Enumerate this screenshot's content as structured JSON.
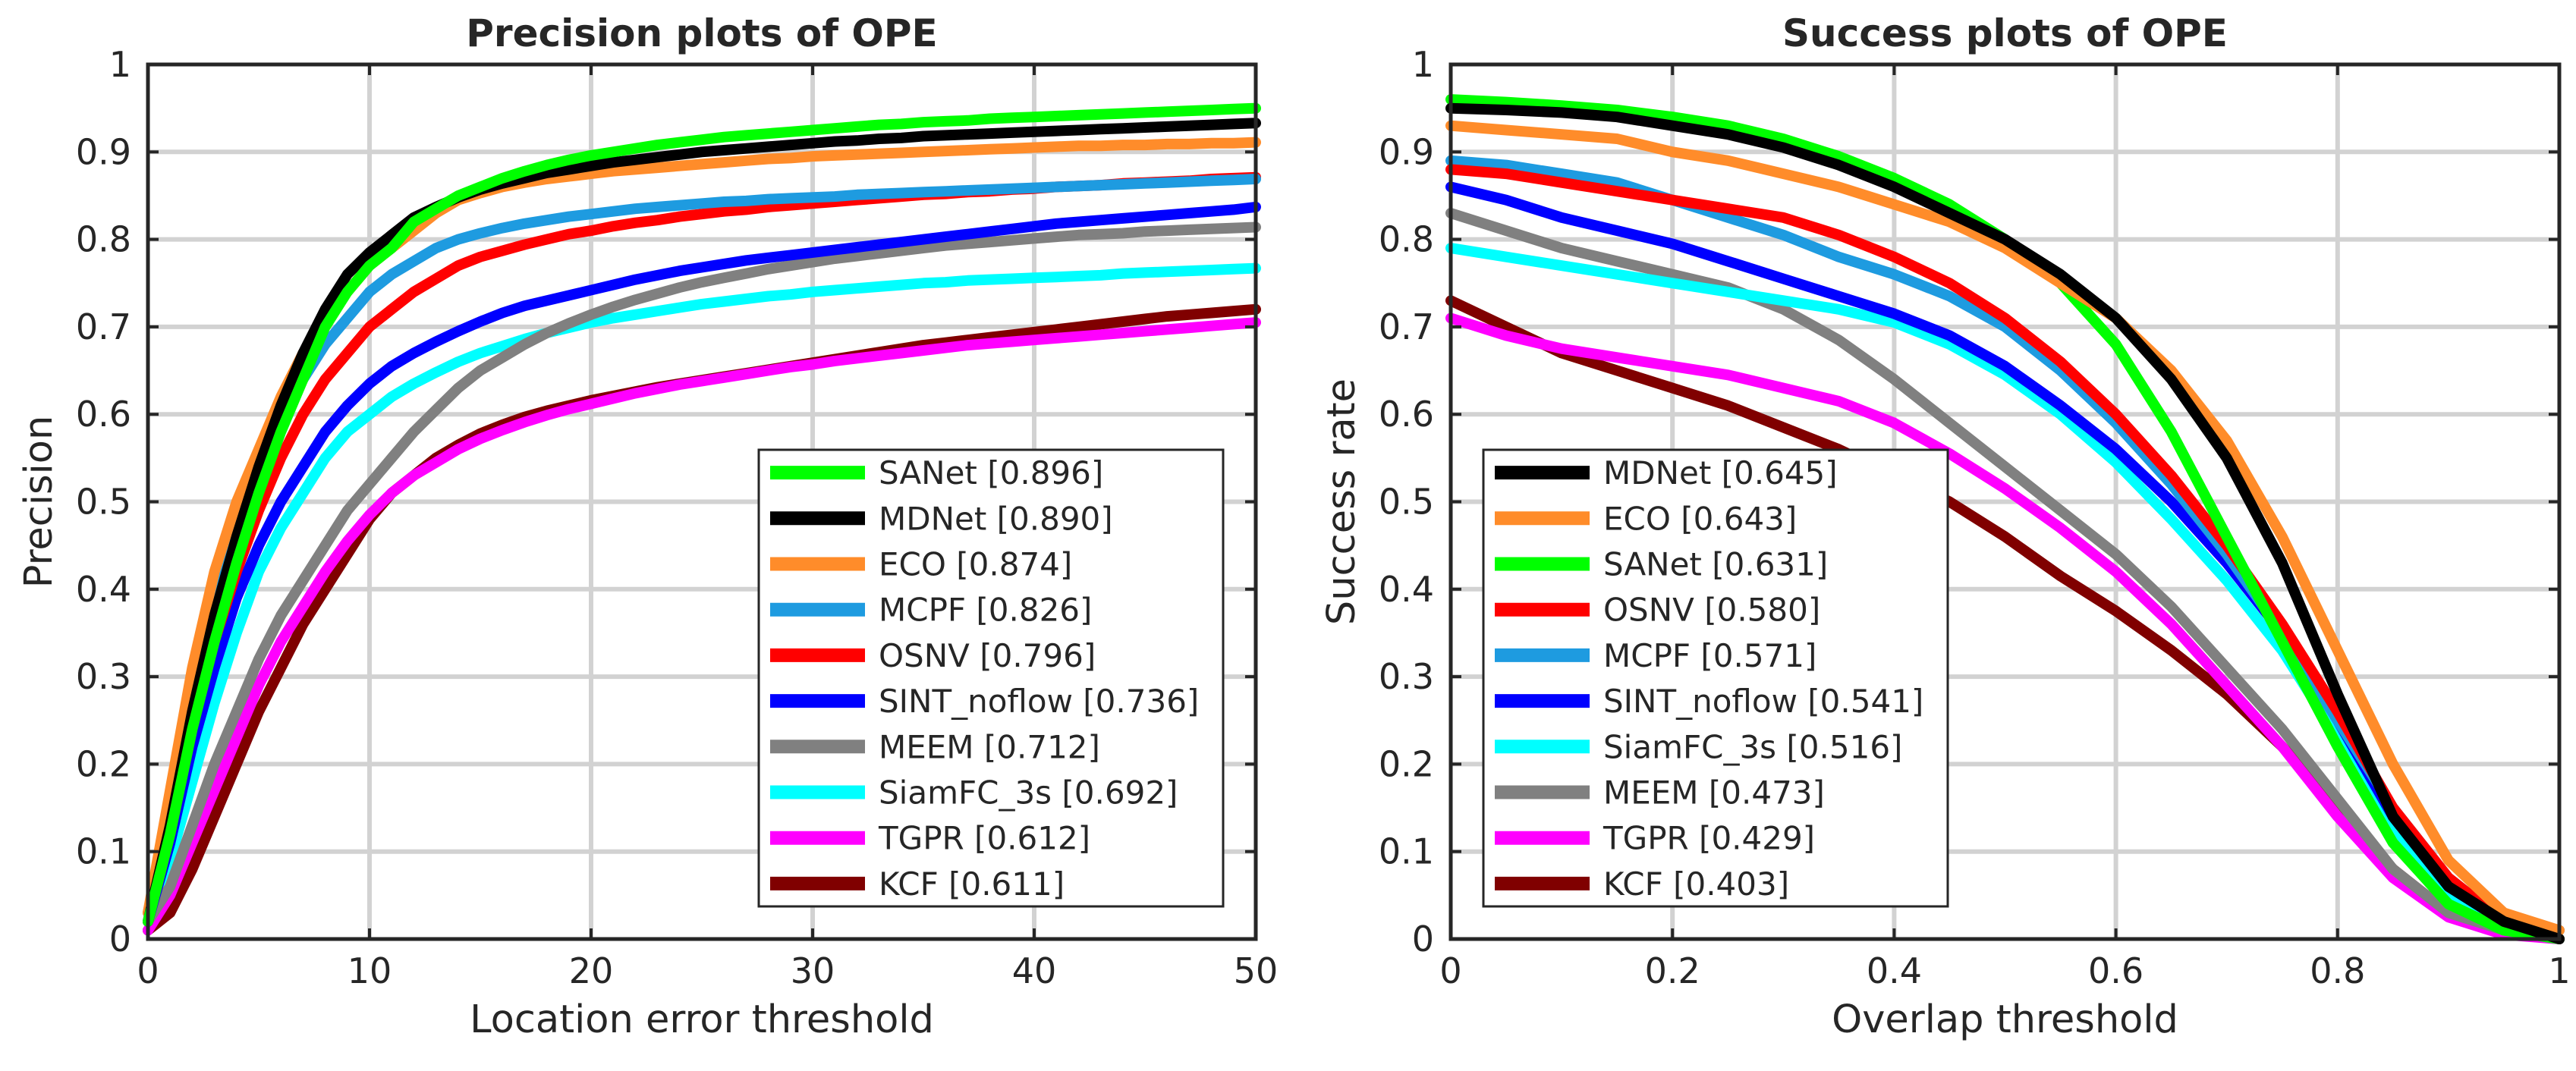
{
  "chart_data": [
    {
      "type": "line",
      "title": "Precision plots of OPE",
      "xlabel": "Location error threshold",
      "ylabel": "Precision",
      "xlim": [
        0,
        50
      ],
      "ylim": [
        0,
        1
      ],
      "grid": true,
      "legend_position": "bottom-right",
      "x_ticks": [
        "0",
        "10",
        "20",
        "30",
        "40",
        "50"
      ],
      "y_ticks": [
        "0",
        "0.1",
        "0.2",
        "0.3",
        "0.4",
        "0.5",
        "0.6",
        "0.7",
        "0.8",
        "0.9",
        "1"
      ],
      "x": [
        0,
        1,
        2,
        3,
        4,
        5,
        6,
        7,
        8,
        9,
        10,
        11,
        12,
        13,
        14,
        15,
        16,
        17,
        18,
        19,
        20,
        21,
        22,
        23,
        24,
        25,
        26,
        27,
        28,
        29,
        30,
        31,
        32,
        33,
        34,
        35,
        36,
        37,
        38,
        39,
        40,
        41,
        42,
        43,
        44,
        45,
        46,
        47,
        48,
        49,
        50
      ],
      "series": [
        {
          "name": "SANet",
          "legend": "SANet [0.896]",
          "color": "#00ff00",
          "values": [
            0.02,
            0.12,
            0.24,
            0.34,
            0.43,
            0.51,
            0.58,
            0.64,
            0.7,
            0.74,
            0.77,
            0.79,
            0.82,
            0.835,
            0.85,
            0.86,
            0.87,
            0.878,
            0.885,
            0.891,
            0.896,
            0.9,
            0.904,
            0.908,
            0.911,
            0.914,
            0.917,
            0.919,
            0.921,
            0.923,
            0.925,
            0.927,
            0.929,
            0.931,
            0.932,
            0.934,
            0.935,
            0.936,
            0.938,
            0.939,
            0.94,
            0.941,
            0.942,
            0.943,
            0.944,
            0.945,
            0.946,
            0.947,
            0.948,
            0.949,
            0.95
          ]
        },
        {
          "name": "MDNet",
          "legend": "MDNet [0.890]",
          "color": "#000000",
          "values": [
            0.02,
            0.13,
            0.26,
            0.37,
            0.46,
            0.54,
            0.61,
            0.67,
            0.72,
            0.76,
            0.785,
            0.805,
            0.825,
            0.837,
            0.848,
            0.857,
            0.864,
            0.87,
            0.876,
            0.88,
            0.884,
            0.888,
            0.891,
            0.894,
            0.897,
            0.9,
            0.902,
            0.904,
            0.906,
            0.908,
            0.91,
            0.912,
            0.913,
            0.915,
            0.916,
            0.918,
            0.919,
            0.92,
            0.921,
            0.922,
            0.923,
            0.924,
            0.925,
            0.926,
            0.927,
            0.928,
            0.929,
            0.93,
            0.931,
            0.932,
            0.933
          ]
        },
        {
          "name": "ECO",
          "legend": "ECO [0.874]",
          "color": "#ff8c2a",
          "values": [
            0.03,
            0.17,
            0.31,
            0.42,
            0.5,
            0.56,
            0.62,
            0.67,
            0.71,
            0.74,
            0.77,
            0.79,
            0.81,
            0.83,
            0.845,
            0.853,
            0.86,
            0.865,
            0.869,
            0.872,
            0.875,
            0.878,
            0.88,
            0.882,
            0.884,
            0.886,
            0.888,
            0.89,
            0.892,
            0.893,
            0.895,
            0.896,
            0.897,
            0.898,
            0.899,
            0.9,
            0.901,
            0.902,
            0.903,
            0.904,
            0.905,
            0.906,
            0.907,
            0.907,
            0.908,
            0.908,
            0.909,
            0.909,
            0.91,
            0.91,
            0.911
          ]
        },
        {
          "name": "MCPF",
          "legend": "MCPF [0.826]",
          "color": "#1e9be0",
          "values": [
            0.03,
            0.15,
            0.28,
            0.39,
            0.47,
            0.54,
            0.59,
            0.64,
            0.68,
            0.71,
            0.74,
            0.76,
            0.775,
            0.79,
            0.8,
            0.807,
            0.813,
            0.818,
            0.822,
            0.826,
            0.829,
            0.832,
            0.835,
            0.837,
            0.839,
            0.841,
            0.843,
            0.844,
            0.846,
            0.847,
            0.848,
            0.849,
            0.851,
            0.852,
            0.853,
            0.854,
            0.855,
            0.856,
            0.857,
            0.858,
            0.859,
            0.86,
            0.861,
            0.862,
            0.863,
            0.864,
            0.865,
            0.866,
            0.867,
            0.868,
            0.869
          ]
        },
        {
          "name": "OSNV",
          "legend": "OSNV [0.796]",
          "color": "#ff0000",
          "values": [
            0.02,
            0.12,
            0.24,
            0.34,
            0.42,
            0.49,
            0.55,
            0.6,
            0.64,
            0.67,
            0.7,
            0.72,
            0.74,
            0.755,
            0.77,
            0.78,
            0.787,
            0.794,
            0.8,
            0.806,
            0.81,
            0.815,
            0.819,
            0.822,
            0.826,
            0.829,
            0.832,
            0.834,
            0.837,
            0.839,
            0.841,
            0.843,
            0.845,
            0.847,
            0.849,
            0.851,
            0.852,
            0.854,
            0.855,
            0.857,
            0.858,
            0.86,
            0.861,
            0.862,
            0.864,
            0.865,
            0.866,
            0.867,
            0.869,
            0.87,
            0.871
          ]
        },
        {
          "name": "SINT_noflow",
          "legend": "SINT_noflow [0.736]",
          "color": "#0000ff",
          "values": [
            0.02,
            0.11,
            0.22,
            0.31,
            0.39,
            0.45,
            0.5,
            0.54,
            0.58,
            0.61,
            0.635,
            0.655,
            0.67,
            0.683,
            0.695,
            0.706,
            0.716,
            0.724,
            0.73,
            0.736,
            0.742,
            0.748,
            0.754,
            0.759,
            0.764,
            0.768,
            0.772,
            0.776,
            0.779,
            0.782,
            0.785,
            0.788,
            0.791,
            0.794,
            0.797,
            0.8,
            0.803,
            0.806,
            0.809,
            0.812,
            0.815,
            0.818,
            0.82,
            0.822,
            0.824,
            0.826,
            0.828,
            0.83,
            0.832,
            0.834,
            0.837
          ]
        },
        {
          "name": "MEEM",
          "legend": "MEEM [0.712]",
          "color": "#808080",
          "values": [
            0.02,
            0.06,
            0.13,
            0.2,
            0.26,
            0.32,
            0.37,
            0.41,
            0.45,
            0.49,
            0.52,
            0.55,
            0.58,
            0.605,
            0.63,
            0.65,
            0.665,
            0.68,
            0.693,
            0.704,
            0.714,
            0.723,
            0.731,
            0.738,
            0.745,
            0.751,
            0.756,
            0.761,
            0.766,
            0.77,
            0.774,
            0.778,
            0.781,
            0.784,
            0.787,
            0.79,
            0.793,
            0.795,
            0.797,
            0.799,
            0.801,
            0.803,
            0.805,
            0.806,
            0.807,
            0.809,
            0.81,
            0.811,
            0.812,
            0.813,
            0.814
          ]
        },
        {
          "name": "SiamFC_3s",
          "legend": "SiamFC_3s [0.692]",
          "color": "#00ffff",
          "values": [
            0.02,
            0.09,
            0.18,
            0.27,
            0.35,
            0.42,
            0.47,
            0.51,
            0.55,
            0.58,
            0.6,
            0.62,
            0.635,
            0.648,
            0.66,
            0.67,
            0.678,
            0.686,
            0.693,
            0.699,
            0.705,
            0.71,
            0.714,
            0.718,
            0.722,
            0.726,
            0.729,
            0.732,
            0.735,
            0.737,
            0.74,
            0.742,
            0.744,
            0.746,
            0.748,
            0.75,
            0.751,
            0.753,
            0.754,
            0.755,
            0.756,
            0.757,
            0.758,
            0.759,
            0.761,
            0.762,
            0.763,
            0.764,
            0.765,
            0.766,
            0.767
          ]
        },
        {
          "name": "TGPR",
          "legend": "TGPR [0.612]",
          "color": "#ff00ff",
          "values": [
            0.01,
            0.05,
            0.11,
            0.17,
            0.23,
            0.29,
            0.34,
            0.38,
            0.42,
            0.455,
            0.485,
            0.51,
            0.53,
            0.545,
            0.56,
            0.572,
            0.582,
            0.591,
            0.599,
            0.606,
            0.612,
            0.618,
            0.624,
            0.629,
            0.634,
            0.638,
            0.642,
            0.646,
            0.65,
            0.654,
            0.657,
            0.661,
            0.664,
            0.667,
            0.67,
            0.673,
            0.676,
            0.679,
            0.681,
            0.683,
            0.685,
            0.687,
            0.689,
            0.691,
            0.693,
            0.695,
            0.697,
            0.699,
            0.701,
            0.703,
            0.705
          ]
        },
        {
          "name": "KCF",
          "legend": "KCF [0.611]",
          "color": "#800000",
          "values": [
            0.01,
            0.03,
            0.08,
            0.14,
            0.2,
            0.26,
            0.31,
            0.36,
            0.4,
            0.44,
            0.48,
            0.51,
            0.53,
            0.55,
            0.565,
            0.578,
            0.588,
            0.597,
            0.604,
            0.61,
            0.616,
            0.621,
            0.626,
            0.631,
            0.635,
            0.639,
            0.643,
            0.647,
            0.651,
            0.655,
            0.659,
            0.663,
            0.667,
            0.671,
            0.675,
            0.679,
            0.682,
            0.685,
            0.688,
            0.691,
            0.694,
            0.697,
            0.7,
            0.703,
            0.706,
            0.709,
            0.712,
            0.714,
            0.716,
            0.718,
            0.72
          ]
        }
      ]
    },
    {
      "type": "line",
      "title": "Success plots of OPE",
      "xlabel": "Overlap threshold",
      "ylabel": "Success rate",
      "xlim": [
        0,
        1
      ],
      "ylim": [
        0,
        1
      ],
      "grid": true,
      "legend_position": "bottom-left",
      "x_ticks": [
        "0",
        "0.2",
        "0.4",
        "0.6",
        "0.8",
        "1"
      ],
      "y_ticks": [
        "0",
        "0.1",
        "0.2",
        "0.3",
        "0.4",
        "0.5",
        "0.6",
        "0.7",
        "0.8",
        "0.9",
        "1"
      ],
      "x": [
        0,
        0.05,
        0.1,
        0.15,
        0.2,
        0.25,
        0.3,
        0.35,
        0.4,
        0.45,
        0.5,
        0.55,
        0.6,
        0.65,
        0.7,
        0.75,
        0.8,
        0.85,
        0.9,
        0.95,
        1
      ],
      "series": [
        {
          "name": "MDNet",
          "legend": "MDNet [0.645]",
          "color": "#000000",
          "values": [
            0.95,
            0.948,
            0.945,
            0.94,
            0.93,
            0.92,
            0.905,
            0.885,
            0.86,
            0.83,
            0.8,
            0.76,
            0.71,
            0.64,
            0.55,
            0.43,
            0.28,
            0.14,
            0.06,
            0.02,
            0.0
          ]
        },
        {
          "name": "ECO",
          "legend": "ECO [0.643]",
          "color": "#ff8c2a",
          "values": [
            0.93,
            0.925,
            0.92,
            0.915,
            0.9,
            0.89,
            0.875,
            0.86,
            0.84,
            0.82,
            0.79,
            0.75,
            0.71,
            0.65,
            0.57,
            0.46,
            0.33,
            0.2,
            0.09,
            0.03,
            0.01
          ]
        },
        {
          "name": "SANet",
          "legend": "SANet [0.631]",
          "color": "#00ff00",
          "values": [
            0.96,
            0.957,
            0.953,
            0.948,
            0.94,
            0.93,
            0.915,
            0.895,
            0.87,
            0.84,
            0.8,
            0.75,
            0.68,
            0.58,
            0.46,
            0.34,
            0.22,
            0.11,
            0.04,
            0.01,
            0.0
          ]
        },
        {
          "name": "OSNV",
          "legend": "OSNV [0.580]",
          "color": "#ff0000",
          "values": [
            0.88,
            0.875,
            0.865,
            0.855,
            0.845,
            0.835,
            0.825,
            0.805,
            0.78,
            0.75,
            0.71,
            0.66,
            0.6,
            0.53,
            0.45,
            0.36,
            0.26,
            0.15,
            0.07,
            0.02,
            0.0
          ]
        },
        {
          "name": "MCPF",
          "legend": "MCPF [0.571]",
          "color": "#1e9be0",
          "values": [
            0.89,
            0.885,
            0.875,
            0.865,
            0.845,
            0.825,
            0.805,
            0.78,
            0.76,
            0.735,
            0.7,
            0.65,
            0.59,
            0.52,
            0.44,
            0.35,
            0.25,
            0.15,
            0.07,
            0.02,
            0.01
          ]
        },
        {
          "name": "SINT_noflow",
          "legend": "SINT_noflow [0.541]",
          "color": "#0000ff",
          "values": [
            0.86,
            0.845,
            0.825,
            0.81,
            0.795,
            0.775,
            0.755,
            0.735,
            0.715,
            0.69,
            0.655,
            0.61,
            0.56,
            0.5,
            0.43,
            0.35,
            0.25,
            0.14,
            0.06,
            0.02,
            0.0
          ]
        },
        {
          "name": "SiamFC_3s",
          "legend": "SiamFC_3s [0.516]",
          "color": "#00ffff",
          "values": [
            0.79,
            0.78,
            0.77,
            0.76,
            0.75,
            0.74,
            0.73,
            0.72,
            0.705,
            0.68,
            0.645,
            0.6,
            0.545,
            0.48,
            0.41,
            0.33,
            0.23,
            0.12,
            0.05,
            0.02,
            0.0
          ]
        },
        {
          "name": "MEEM",
          "legend": "MEEM [0.473]",
          "color": "#808080",
          "values": [
            0.83,
            0.81,
            0.79,
            0.775,
            0.76,
            0.745,
            0.72,
            0.685,
            0.64,
            0.59,
            0.54,
            0.49,
            0.44,
            0.38,
            0.31,
            0.24,
            0.16,
            0.08,
            0.03,
            0.01,
            0.0
          ]
        },
        {
          "name": "TGPR",
          "legend": "TGPR [0.429]",
          "color": "#ff00ff",
          "values": [
            0.71,
            0.69,
            0.675,
            0.665,
            0.655,
            0.645,
            0.63,
            0.615,
            0.59,
            0.555,
            0.515,
            0.47,
            0.42,
            0.36,
            0.29,
            0.22,
            0.14,
            0.07,
            0.025,
            0.005,
            0.0
          ]
        },
        {
          "name": "KCF",
          "legend": "KCF [0.403]",
          "color": "#800000",
          "values": [
            0.73,
            0.7,
            0.67,
            0.65,
            0.63,
            0.61,
            0.585,
            0.56,
            0.53,
            0.5,
            0.46,
            0.415,
            0.375,
            0.33,
            0.28,
            0.22,
            0.15,
            0.08,
            0.03,
            0.01,
            0.0
          ]
        }
      ]
    }
  ]
}
